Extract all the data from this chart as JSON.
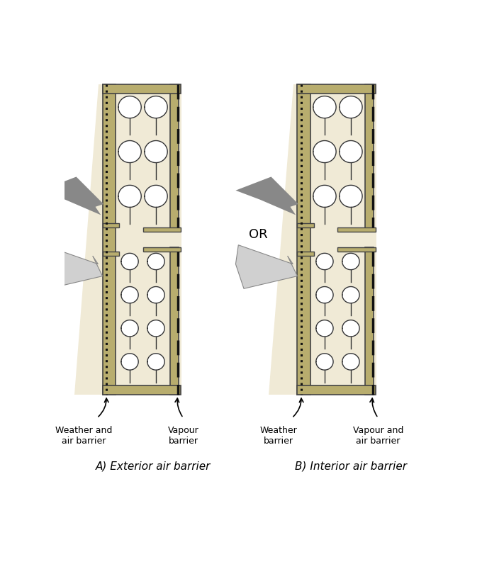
{
  "bg_color": "#ffffff",
  "wall_color": "#b8ad6e",
  "wall_edge": "#444444",
  "bg_panel_color": "#f0ead6",
  "ins_fill": "#ffffff",
  "ins_edge": "#333333",
  "dotted_color": "#111111",
  "dashed_color": "#111111",
  "dark_arrow_color": "#888888",
  "light_arrow_fill": "#d0d0d0",
  "light_arrow_edge": "#888888",
  "title_A": "A) Exterior air barrier",
  "title_B": "B) Interior air barrier",
  "label_A_left": "Weather and\nair barrier",
  "label_A_right": "Vapour\nbarrier",
  "label_B_left": "Weather\nbarrier",
  "label_B_right": "Vapour and\nair barrier",
  "or_text": "OR",
  "font_size_label": 9,
  "font_size_title": 11,
  "font_size_or": 13
}
